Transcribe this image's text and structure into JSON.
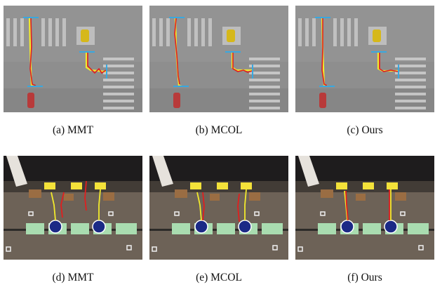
{
  "figure": {
    "captions": [
      "(a) MMT",
      "(b) MCOL",
      "(c) Ours",
      "(d) MMT",
      "(e) MCOL",
      "(f) Ours"
    ]
  },
  "colors": {
    "sim_ground": "#8d8d8d",
    "crosswalk": "#c8c8c8",
    "trajectory_planned": "#f2ea2c",
    "trajectory_actual": "#e01f1f",
    "endpoint_marker": "#38a8e0",
    "lab_floor": "#6f6458",
    "yellow_goal_pad": "#f4e23a",
    "green_start_pad": "#a9dcb0"
  }
}
